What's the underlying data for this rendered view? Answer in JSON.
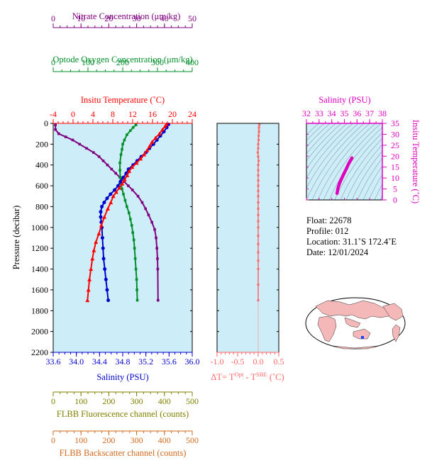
{
  "info": {
    "float": "Float:  22678",
    "profile": "Profile:  012",
    "location": "Location:  31.1˚S  172.4˚E",
    "date": "Date:  12/01/2024"
  },
  "colors": {
    "panel_bg": "#cdeef8",
    "temperature": "#ff0000",
    "salinity": "#0000cc",
    "oxygen": "#008f2a",
    "nitrate": "#800080",
    "fluorescence": "#808000",
    "backscatter": "#d2691e",
    "delta_t": "#ff6666",
    "ts_curve": "#e000c0"
  },
  "chart_data": [
    {
      "type": "line",
      "name": "main-profile",
      "ylabel": "Pressure (decibar)",
      "ylim": [
        2200,
        0
      ],
      "yticks": [
        0,
        200,
        400,
        600,
        800,
        1000,
        1200,
        1400,
        1600,
        1800,
        2000,
        2200
      ],
      "axes": {
        "temperature": {
          "label": "Insitu Temperature (˚C)",
          "lim": [
            -4,
            24
          ],
          "ticks": [
            -4,
            0,
            4,
            8,
            12,
            16,
            20,
            24
          ]
        },
        "salinity": {
          "label": "Salinity (PSU)",
          "lim": [
            33.6,
            36.0
          ],
          "ticks": [
            "33.6",
            "34.0",
            "34.4",
            "34.8",
            "35.2",
            "35.6",
            "36.0"
          ]
        },
        "oxygen": {
          "label": "Optode Oxygen Concentration (μm/kg)",
          "lim": [
            0,
            400
          ],
          "ticks": [
            0,
            100,
            200,
            300,
            400
          ]
        },
        "nitrate": {
          "label": "Nitrate Concentration (μm/kg)",
          "lim": [
            0,
            50
          ],
          "ticks": [
            0,
            10,
            20,
            30,
            40,
            50
          ]
        },
        "fluorescence": {
          "label": "FLBB Fluorescence channel (counts)",
          "lim": [
            0,
            500
          ],
          "ticks": [
            0,
            100,
            200,
            300,
            400,
            500
          ]
        },
        "backscatter": {
          "label": "FLBB Backscatter channel (counts)",
          "lim": [
            0,
            500
          ],
          "ticks": [
            0,
            100,
            200,
            300,
            400,
            500
          ]
        }
      },
      "series": [
        {
          "name": "temperature",
          "x": [
            18.8,
            18.5,
            18.0,
            17.4,
            16.6,
            15.9,
            15.4,
            14.9,
            14.3,
            13.6,
            12.8,
            11.9,
            11.3,
            10.9,
            10.4,
            9.9,
            9.3,
            8.7,
            8.1,
            7.6,
            7.0,
            6.3,
            5.7,
            5.2,
            4.6,
            4.2,
            3.9,
            3.6,
            3.3,
            3.1,
            2.9
          ],
          "p": [
            10,
            30,
            60,
            100,
            140,
            180,
            220,
            260,
            300,
            340,
            380,
            420,
            460,
            500,
            540,
            580,
            620,
            660,
            700,
            760,
            820,
            900,
            980,
            1060,
            1140,
            1220,
            1300,
            1400,
            1500,
            1600,
            1700
          ]
        },
        {
          "name": "salinity",
          "x": [
            35.59,
            35.56,
            35.51,
            35.45,
            35.39,
            35.33,
            35.26,
            35.2,
            35.12,
            35.05,
            34.98,
            34.9,
            34.86,
            34.81,
            34.76,
            34.72,
            34.66,
            34.59,
            34.53,
            34.48,
            34.44,
            34.42,
            34.42,
            34.43,
            34.44,
            34.45,
            34.46,
            34.47,
            34.49,
            34.51,
            34.53,
            34.55
          ],
          "p": [
            10,
            40,
            80,
            120,
            160,
            200,
            240,
            280,
            320,
            360,
            400,
            440,
            480,
            520,
            560,
            600,
            640,
            680,
            720,
            760,
            800,
            850,
            900,
            950,
            1000,
            1100,
            1200,
            1300,
            1400,
            1500,
            1600,
            1700
          ]
        },
        {
          "name": "oxygen",
          "x": [
            238,
            230,
            222,
            212,
            205,
            200,
            198,
            195,
            192,
            192,
            193,
            195,
            198,
            202,
            207,
            212,
            218,
            222,
            226,
            229,
            232,
            234,
            236,
            238,
            240,
            241,
            242
          ],
          "p": [
            15,
            40,
            70,
            110,
            160,
            200,
            250,
            300,
            380,
            450,
            520,
            580,
            630,
            680,
            740,
            800,
            860,
            920,
            980,
            1050,
            1120,
            1200,
            1300,
            1400,
            1500,
            1600,
            1700
          ]
        },
        {
          "name": "nitrate",
          "x": [
            0.8,
            0.8,
            2.0,
            4.5,
            7.0,
            9.5,
            12.0,
            14.5,
            16.5,
            18.0,
            19.5,
            21.0,
            22.5,
            24.0,
            25.5,
            27.0,
            28.5,
            30.5,
            32.0,
            33.2,
            34.3,
            35.5,
            36.5,
            37.0,
            37.3,
            37.5,
            37.6,
            37.7
          ],
          "p": [
            15,
            60,
            100,
            130,
            160,
            200,
            240,
            280,
            320,
            360,
            400,
            440,
            480,
            520,
            560,
            600,
            640,
            700,
            760,
            820,
            880,
            950,
            1020,
            1100,
            1200,
            1300,
            1400,
            1700
          ]
        }
      ]
    },
    {
      "type": "line",
      "name": "delta-t",
      "xlabel": "ΔT= Tᴼᵖᵗ - Tˢᴮᴱ (˚C)",
      "xlim": [
        -1.0,
        0.5
      ],
      "xticks": [
        "-1.0",
        "-0.5",
        "0.0",
        "0.5"
      ],
      "series": [
        {
          "name": "delta-t",
          "x": [
            0.03,
            0.02,
            0.02,
            0.01,
            0.01,
            0.0,
            0.0,
            -0.01,
            0.0,
            0.01,
            0.0,
            0.0,
            0.0,
            0.0,
            0.0,
            0.0,
            0.0,
            0.0,
            0.0,
            0.0,
            0.0,
            0.0,
            0.0,
            0.0,
            0.0,
            0.0,
            0.0,
            0.0,
            0.0
          ],
          "p": [
            10,
            40,
            80,
            120,
            160,
            200,
            240,
            280,
            320,
            360,
            400,
            450,
            500,
            550,
            600,
            650,
            700,
            760,
            820,
            880,
            940,
            1000,
            1080,
            1160,
            1240,
            1320,
            1400,
            1550,
            1700
          ]
        }
      ]
    },
    {
      "type": "line",
      "name": "t-s-diagram",
      "xlabel": "Salinity (PSU)",
      "ylabel": "Insitu Temperature (˚C)",
      "xlim": [
        32,
        38
      ],
      "ylim": [
        0,
        35
      ],
      "xticks": [
        "32",
        "33",
        "34",
        "35",
        "36",
        "37",
        "38"
      ],
      "yticks": [
        "0",
        "5",
        "10",
        "15",
        "20",
        "25",
        "30",
        "35"
      ],
      "series": [
        {
          "name": "t-s",
          "x": [
            34.42,
            34.45,
            34.5,
            34.58,
            34.68,
            34.8,
            34.92,
            35.05,
            35.2,
            35.33,
            35.46,
            35.56,
            35.59
          ],
          "t": [
            3.0,
            4.0,
            5.5,
            7.0,
            8.5,
            10.0,
            11.5,
            13.0,
            14.8,
            16.5,
            17.8,
            18.7,
            19.2
          ]
        }
      ]
    }
  ]
}
